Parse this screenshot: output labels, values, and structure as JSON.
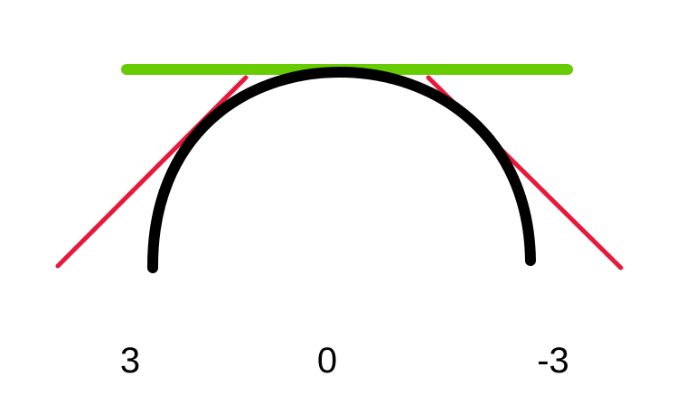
{
  "diagram": {
    "labels": {
      "left": "3",
      "center": "0",
      "right": "-3"
    },
    "colors": {
      "curve": "#000000",
      "top_tangent": "#66cc00",
      "side_tangents": "#e8183a",
      "background": "#ffffff"
    },
    "elements": [
      "semicircle-arc",
      "horizontal-tangent-line-at-top",
      "left-tangent-line",
      "right-tangent-line"
    ]
  }
}
